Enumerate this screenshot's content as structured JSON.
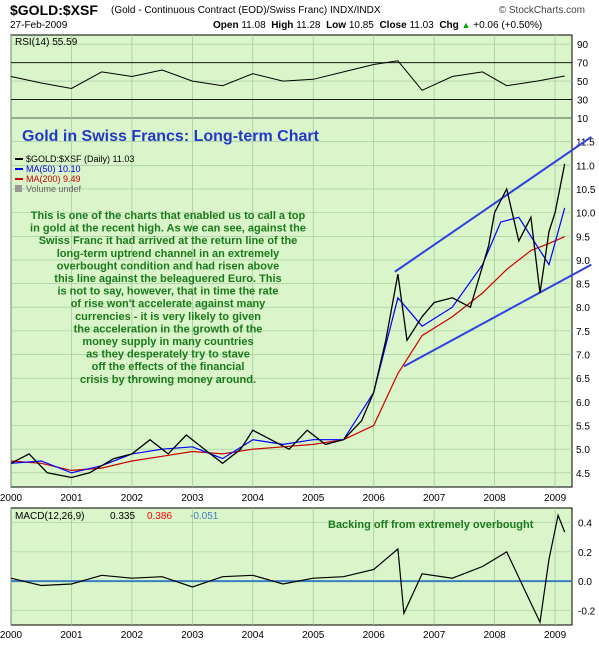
{
  "header": {
    "symbol": "$GOLD:$XSF",
    "description": "(Gold - Continuous Contract (EOD)/Swiss Franc)  INDX/INDX",
    "brand": "© StockCharts.com",
    "date": "27-Feb-2009",
    "open_label": "Open",
    "open": "11.08",
    "high_label": "High",
    "high": "11.28",
    "low_label": "Low",
    "low": "10.85",
    "close_label": "Close",
    "close": "11.03",
    "chg_label": "Chg",
    "chg": "+0.06 (+0.50%)",
    "chg_arrow": "▲"
  },
  "colors": {
    "panel_bg": "#d9f5c9",
    "price": "#000000",
    "ma50": "#0000ff",
    "ma200": "#cc0000",
    "channel": "#3040e0",
    "title_text": "#2438c8",
    "note_text": "#1a7a1a",
    "macd_line": "#000000",
    "macd_signal": "#ff0000",
    "macd_hist": "#3a7fc0"
  },
  "chart_data": [
    {
      "type": "line",
      "panel": "rsi",
      "legend": "RSI(14) 55.59",
      "ylim": [
        10,
        100
      ],
      "yticks": [
        10,
        30,
        50,
        70,
        90
      ],
      "reference_lines": [
        30,
        70
      ],
      "series": [
        {
          "x": [
            2000.0,
            2000.5,
            2001.0,
            2001.5,
            2002.0,
            2002.5,
            2003.0,
            2003.5,
            2004.0,
            2004.5,
            2005.0,
            2005.5,
            2006.0,
            2006.4,
            2006.8,
            2007.3,
            2007.8,
            2008.2,
            2008.7,
            2009.16
          ],
          "values": [
            55,
            48,
            42,
            60,
            55,
            62,
            50,
            45,
            58,
            50,
            52,
            60,
            68,
            72,
            40,
            55,
            60,
            45,
            50,
            55.59
          ]
        }
      ]
    },
    {
      "type": "line",
      "panel": "price",
      "title": "Gold in Swiss Francs: Long-term Chart",
      "ylim": [
        4.2,
        12.0
      ],
      "yticks": [
        4.5,
        5.0,
        5.5,
        6.0,
        6.5,
        7.0,
        7.5,
        8.0,
        8.5,
        9.0,
        9.5,
        10.0,
        10.5,
        11.0,
        11.5
      ],
      "xticks": [
        "2000",
        "2001",
        "2002",
        "2003",
        "2004",
        "2005",
        "2006",
        "2007",
        "2008",
        "2009"
      ],
      "legend": [
        "$GOLD:$XSF (Daily) 11.03",
        "MA(50) 10.10",
        "MA(200) 9.49",
        "Volume undef"
      ],
      "series": [
        {
          "name": "$GOLD:$XSF (Daily) 11.03",
          "x": [
            2000.0,
            2000.3,
            2000.6,
            2001.0,
            2001.3,
            2001.7,
            2002.0,
            2002.3,
            2002.6,
            2002.9,
            2003.2,
            2003.5,
            2003.8,
            2004.0,
            2004.3,
            2004.6,
            2004.9,
            2005.2,
            2005.5,
            2005.8,
            2006.0,
            2006.2,
            2006.4,
            2006.55,
            2006.8,
            2007.0,
            2007.3,
            2007.6,
            2007.9,
            2008.0,
            2008.2,
            2008.4,
            2008.6,
            2008.75,
            2008.9,
            2009.0,
            2009.16
          ],
          "values": [
            4.7,
            4.9,
            4.5,
            4.4,
            4.5,
            4.8,
            4.9,
            5.2,
            4.9,
            5.3,
            5.0,
            4.7,
            5.0,
            5.4,
            5.2,
            5.0,
            5.4,
            5.1,
            5.2,
            5.6,
            6.2,
            7.3,
            8.7,
            7.3,
            7.8,
            8.1,
            8.2,
            8.0,
            9.3,
            10.0,
            10.5,
            9.4,
            9.9,
            8.3,
            9.6,
            10.0,
            11.03
          ]
        },
        {
          "name": "MA(50) 10.10",
          "x": [
            2000.0,
            2000.5,
            2001.0,
            2001.5,
            2002.0,
            2002.5,
            2003.0,
            2003.5,
            2004.0,
            2004.5,
            2005.0,
            2005.5,
            2006.0,
            2006.4,
            2006.8,
            2007.3,
            2007.8,
            2008.1,
            2008.4,
            2008.7,
            2008.9,
            2009.16
          ],
          "values": [
            4.7,
            4.75,
            4.5,
            4.65,
            4.9,
            5.0,
            5.05,
            4.8,
            5.2,
            5.1,
            5.2,
            5.2,
            6.2,
            8.2,
            7.6,
            8.0,
            8.9,
            9.8,
            9.9,
            9.3,
            8.9,
            10.1
          ]
        },
        {
          "name": "MA(200) 9.49",
          "x": [
            2000.0,
            2000.5,
            2001.0,
            2001.5,
            2002.0,
            2002.5,
            2003.0,
            2003.5,
            2004.0,
            2004.5,
            2005.0,
            2005.5,
            2006.0,
            2006.4,
            2006.8,
            2007.3,
            2007.8,
            2008.2,
            2008.6,
            2008.9,
            2009.16
          ],
          "values": [
            4.75,
            4.7,
            4.55,
            4.6,
            4.75,
            4.85,
            4.95,
            4.9,
            5.0,
            5.05,
            5.1,
            5.2,
            5.5,
            6.6,
            7.4,
            7.8,
            8.3,
            8.8,
            9.2,
            9.35,
            9.49
          ]
        }
      ],
      "channel_lines": [
        {
          "x": [
            2006.35,
            2009.6
          ],
          "values": [
            8.75,
            11.6
          ]
        },
        {
          "x": [
            2006.5,
            2009.6
          ],
          "values": [
            6.75,
            8.9
          ]
        }
      ]
    },
    {
      "type": "line",
      "panel": "macd",
      "legend_prefix": "MACD(12,26,9)",
      "legend_macd": "0.335",
      "legend_signal": "0.386",
      "legend_hist": "-0.051",
      "ylim": [
        -0.3,
        0.5
      ],
      "yticks": [
        -0.2,
        0.0,
        0.2,
        0.4
      ],
      "xticks": [
        "2000",
        "2001",
        "2002",
        "2003",
        "2004",
        "2005",
        "2006",
        "2007",
        "2008",
        "2009"
      ],
      "series": [
        {
          "name": "MACD(12,26,9)",
          "x": [
            2000.0,
            2000.5,
            2001.0,
            2001.5,
            2002.0,
            2002.5,
            2003.0,
            2003.5,
            2004.0,
            2004.5,
            2005.0,
            2005.5,
            2006.0,
            2006.4,
            2006.5,
            2006.8,
            2007.3,
            2007.8,
            2008.2,
            2008.6,
            2008.75,
            2008.9,
            2009.05,
            2009.16
          ],
          "values": [
            0.02,
            -0.03,
            -0.02,
            0.04,
            0.02,
            0.03,
            -0.04,
            0.03,
            0.04,
            -0.02,
            0.02,
            0.03,
            0.08,
            0.22,
            -0.22,
            0.05,
            0.02,
            0.1,
            0.2,
            -0.15,
            -0.28,
            0.15,
            0.45,
            0.335
          ]
        }
      ]
    }
  ],
  "annotations": {
    "note": [
      "This is one of the charts that enabled us to call a top",
      "in gold at the recent high. As we can see, against the",
      "Swiss Franc it had arrived at the return line of the",
      "long-term uptrend channel in an extremely",
      "overbought condition and had risen above",
      "this line against the beleaguered Euro. This",
      "is not to say, however, that in time the rate",
      "of rise won't accelerate against many",
      "currencies - it is very likely to given",
      "the acceleration in the growth of the",
      "money supply in many countries",
      "as they desperately try to stave",
      "off the effects of the financial",
      "crisis by throwing money around."
    ],
    "macd_note": "Backing off from extremely overbought"
  }
}
